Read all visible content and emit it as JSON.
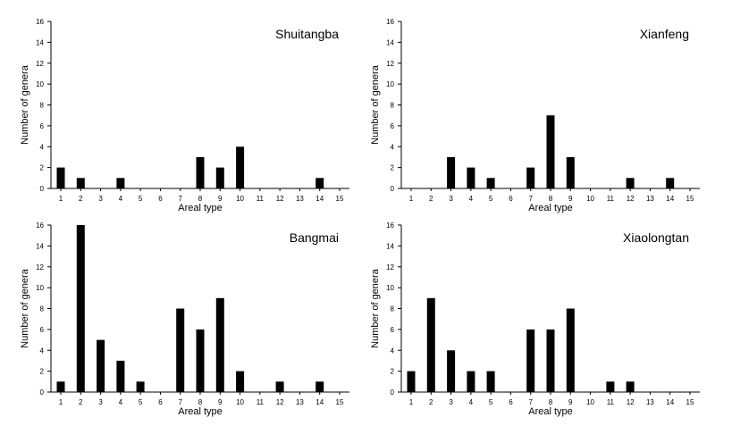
{
  "colors": {
    "bar": "#000000",
    "axis": "#000000",
    "background": "#ffffff"
  },
  "chart_data": [
    {
      "type": "bar",
      "title": "Shuitangba",
      "xlabel": "Areal type",
      "ylabel": "Number of genera",
      "ylim": [
        0,
        16
      ],
      "yticks": [
        0,
        2,
        4,
        6,
        8,
        10,
        12,
        14,
        16
      ],
      "grid": false,
      "legend": "none",
      "categories": [
        "1",
        "2",
        "3",
        "4",
        "5",
        "6",
        "7",
        "8",
        "9",
        "10",
        "11",
        "12",
        "13",
        "14",
        "15"
      ],
      "values": [
        2,
        1,
        0,
        1,
        0,
        0,
        0,
        3,
        2,
        4,
        0,
        0,
        0,
        1,
        0
      ]
    },
    {
      "type": "bar",
      "title": "Xianfeng",
      "xlabel": "Areal type",
      "ylabel": "Number of genera",
      "ylim": [
        0,
        16
      ],
      "yticks": [
        0,
        2,
        4,
        6,
        8,
        10,
        12,
        14,
        16
      ],
      "grid": false,
      "legend": "none",
      "categories": [
        "1",
        "2",
        "3",
        "4",
        "5",
        "6",
        "7",
        "8",
        "9",
        "10",
        "11",
        "12",
        "13",
        "14",
        "15"
      ],
      "values": [
        0,
        0,
        3,
        2,
        1,
        0,
        2,
        7,
        3,
        0,
        0,
        1,
        0,
        1,
        0
      ]
    },
    {
      "type": "bar",
      "title": "Bangmai",
      "xlabel": "Areal type",
      "ylabel": "Number of genera",
      "ylim": [
        0,
        16
      ],
      "yticks": [
        0,
        2,
        4,
        6,
        8,
        10,
        12,
        14,
        16
      ],
      "grid": false,
      "legend": "none",
      "categories": [
        "1",
        "2",
        "3",
        "4",
        "5",
        "6",
        "7",
        "8",
        "9",
        "10",
        "11",
        "12",
        "13",
        "14",
        "15"
      ],
      "values": [
        1,
        16,
        5,
        3,
        1,
        0,
        8,
        6,
        9,
        2,
        0,
        1,
        0,
        1,
        0
      ]
    },
    {
      "type": "bar",
      "title": "Xiaolongtan",
      "xlabel": "Areal type",
      "ylabel": "Number of genera",
      "ylim": [
        0,
        16
      ],
      "yticks": [
        0,
        2,
        4,
        6,
        8,
        10,
        12,
        14,
        16
      ],
      "grid": false,
      "legend": "none",
      "categories": [
        "1",
        "2",
        "3",
        "4",
        "5",
        "6",
        "7",
        "8",
        "9",
        "10",
        "11",
        "12",
        "13",
        "14",
        "15"
      ],
      "values": [
        2,
        9,
        4,
        2,
        2,
        0,
        6,
        6,
        8,
        0,
        1,
        1,
        0,
        0,
        0
      ]
    }
  ]
}
